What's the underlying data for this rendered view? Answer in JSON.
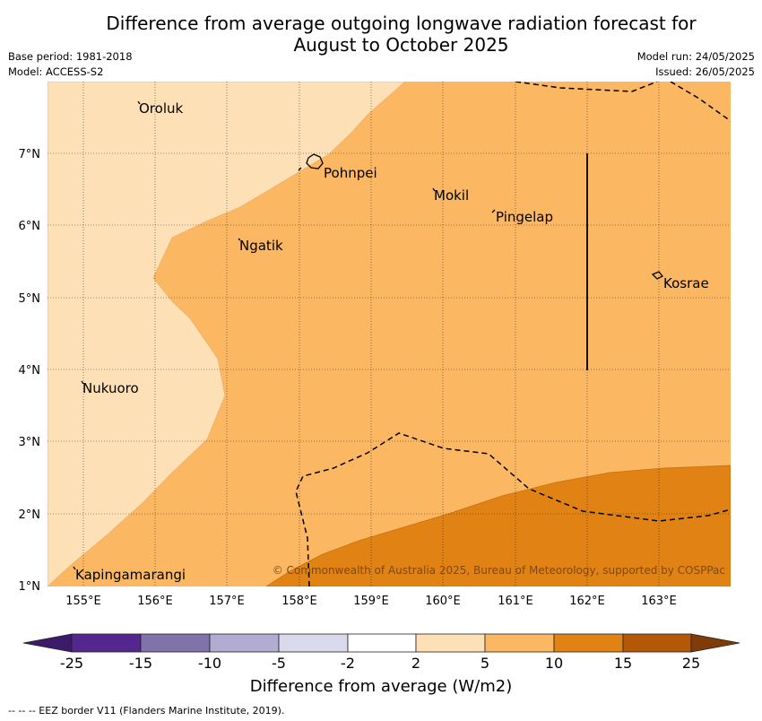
{
  "title_line1": "Difference from average outgoing longwave radiation forecast for",
  "title_line2": "August to October 2025",
  "base_period": "Base period: 1981-2018",
  "model": "Model: ACCESS-S2",
  "model_run": "Model run: 24/05/2025",
  "issued": "Issued: 26/05/2025",
  "map": {
    "lon_range": [
      154.5,
      164.0
    ],
    "lat_range": [
      1.0,
      8.0
    ],
    "lon_ticks": [
      "155°E",
      "156°E",
      "157°E",
      "158°E",
      "159°E",
      "160°E",
      "161°E",
      "162°E",
      "163°E"
    ],
    "lat_ticks": [
      "1°N",
      "2°N",
      "3°N",
      "4°N",
      "5°N",
      "6°N",
      "7°N"
    ],
    "places": [
      {
        "name": "Oroluk"
      },
      {
        "name": "Pohnpei"
      },
      {
        "name": "Mokil"
      },
      {
        "name": "Pingelap"
      },
      {
        "name": "Ngatik"
      },
      {
        "name": "Kosrae"
      },
      {
        "name": "Nukuoro"
      },
      {
        "name": "Kapingamarangi"
      }
    ],
    "copyright": "© Commonwealth of Australia 2025, Bureau of Meteorology, supported by COSPPac"
  },
  "colorbar": {
    "labels": [
      "-25",
      "-15",
      "-10",
      "-5",
      "-2",
      "2",
      "5",
      "10",
      "15",
      "25"
    ],
    "colors": [
      "#3e1a6b",
      "#54278f",
      "#8073ac",
      "#b2abd2",
      "#d8daeb",
      "#ffffff",
      "#fee0b6",
      "#fbb761",
      "#e08214",
      "#b35806",
      "#7f3b08"
    ],
    "unit_label": "Difference from average (W/m2)"
  },
  "footnote": "--  --  -- EEZ border V11 (Flanders Marine Institute, 2019)."
}
